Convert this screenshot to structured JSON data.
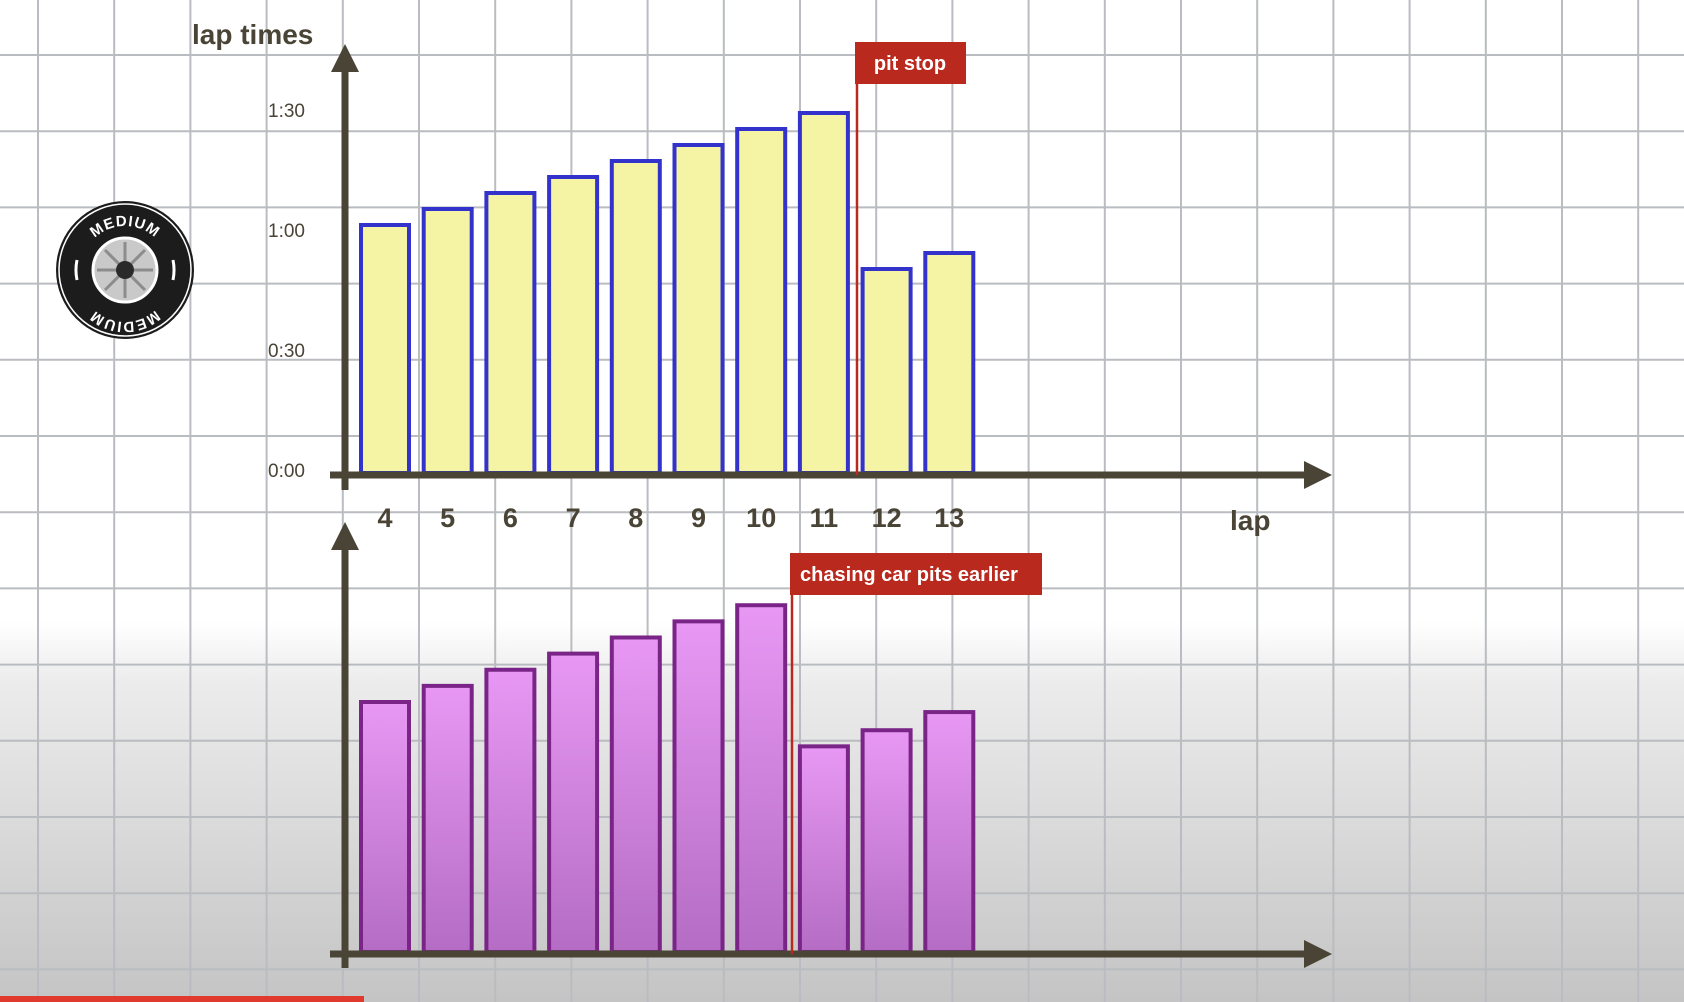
{
  "chart_data": [
    {
      "type": "bar",
      "ylabel": "lap times",
      "xlabel": "lap",
      "categories": [
        "4",
        "5",
        "6",
        "7",
        "8",
        "9",
        "10",
        "11",
        "12",
        "13"
      ],
      "values_seconds": [
        62,
        66,
        70,
        74,
        78,
        82,
        86,
        90,
        51,
        55
      ],
      "yticks": [
        "0:00",
        "0:30",
        "1:00",
        "1:30"
      ],
      "ytick_values_seconds": [
        0,
        30,
        60,
        90
      ],
      "ylim_seconds": [
        0,
        105
      ],
      "annotation": {
        "text": "pit stop",
        "between": [
          "11",
          "12"
        ]
      },
      "colors": {
        "fill": "#f5f3a4",
        "stroke": "#3333cc"
      }
    },
    {
      "type": "bar",
      "categories": [
        "4",
        "5",
        "6",
        "7",
        "8",
        "9",
        "10",
        "11",
        "12",
        "13"
      ],
      "values_seconds": [
        62,
        66,
        70,
        74,
        78,
        82,
        86,
        51,
        55,
        59.5
      ],
      "ylim_seconds": [
        0,
        105
      ],
      "annotation": {
        "text": "chasing car pits earlier",
        "between": [
          "10",
          "11"
        ]
      },
      "colors": {
        "fill_top": "#e898f4",
        "fill_bottom": "#b46cc4",
        "stroke": "#7a2488"
      }
    }
  ],
  "tyre": {
    "label": "MEDIUM",
    "icon": "medium-tyre-icon"
  },
  "colors": {
    "axis": "#4a4436",
    "grid": "#b9bcc0",
    "annotation": "#b9291e",
    "progress": "#e03a2f"
  }
}
